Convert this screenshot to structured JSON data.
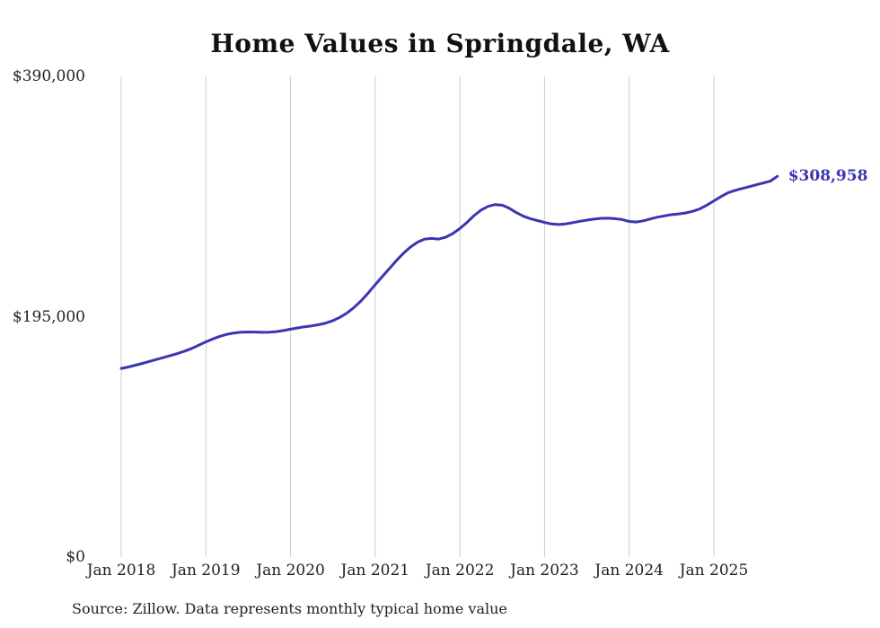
{
  "chart_data": {
    "type": "line",
    "title": "Home Values in Springdale, WA",
    "x_ticks": [
      "Jan 2018",
      "Jan 2019",
      "Jan 2020",
      "Jan 2021",
      "Jan 2022",
      "Jan 2023",
      "Jan 2024",
      "Jan 2025"
    ],
    "y_tick_labels": [
      "$390,000",
      "$195,000",
      "$0"
    ],
    "y_tick_values": [
      390000,
      195000,
      0
    ],
    "ylim": [
      0,
      390000
    ],
    "grid": "vertical",
    "legend_position": "none",
    "end_label": "$308,958",
    "end_value": 308958,
    "source": "Source: Zillow. Data represents monthly typical home value",
    "colors": {
      "line": "#3b35b2",
      "grid": "#cccccc",
      "text": "#222222",
      "title": "#111111"
    },
    "series": [
      {
        "name": "Monthly typical home value",
        "start": "Jan 2018",
        "interval": "monthly",
        "values": [
          153000,
          154200,
          155600,
          157100,
          158700,
          160300,
          161900,
          163500,
          165200,
          167100,
          169300,
          171900,
          174600,
          177000,
          179100,
          180700,
          181800,
          182400,
          182600,
          182500,
          182300,
          182400,
          182900,
          183800,
          184900,
          185900,
          186800,
          187600,
          188500,
          189800,
          191800,
          194500,
          198000,
          202500,
          207800,
          214200,
          221000,
          227500,
          234000,
          240500,
          246500,
          251500,
          255500,
          258000,
          258500,
          258000,
          259500,
          262500,
          266500,
          271500,
          277000,
          281500,
          284500,
          286000,
          285500,
          283000,
          279500,
          276500,
          274500,
          273000,
          271500,
          270200,
          269800,
          270300,
          271300,
          272400,
          273400,
          274200,
          274800,
          274900,
          274500,
          273800,
          272300,
          271800,
          272800,
          274300,
          275800,
          276800,
          277800,
          278400,
          279200,
          280500,
          282500,
          285500,
          289000,
          292500,
          295500,
          297500,
          299000,
          300500,
          302000,
          303500,
          305000,
          308958
        ]
      }
    ]
  }
}
